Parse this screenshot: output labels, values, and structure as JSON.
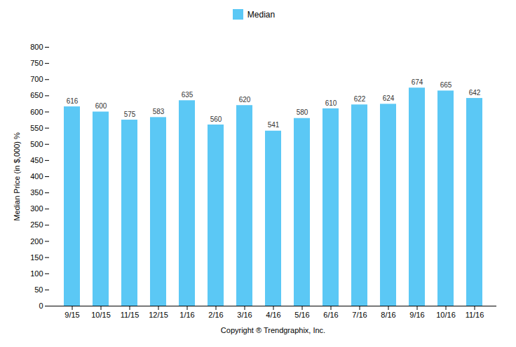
{
  "chart_data": {
    "type": "bar",
    "categories": [
      "9/15",
      "10/15",
      "11/15",
      "12/15",
      "1/16",
      "2/16",
      "3/16",
      "4/16",
      "5/16",
      "6/16",
      "7/16",
      "8/16",
      "9/16",
      "10/16",
      "11/16"
    ],
    "series": [
      {
        "name": "Median",
        "color": "#5BC8F5",
        "values": [
          616,
          600,
          575,
          583,
          635,
          560,
          620,
          541,
          580,
          610,
          622,
          624,
          674,
          665,
          642
        ]
      }
    ],
    "xlabel": "Copyright ® Trendgraphix, Inc.",
    "ylabel": "Median Price (in $,000) %",
    "ylim": [
      0,
      800
    ],
    "yticks": [
      0,
      50,
      100,
      150,
      200,
      250,
      300,
      350,
      400,
      450,
      500,
      550,
      600,
      650,
      700,
      750,
      800
    ],
    "grid": false,
    "legend": "top",
    "data_labels": true
  }
}
